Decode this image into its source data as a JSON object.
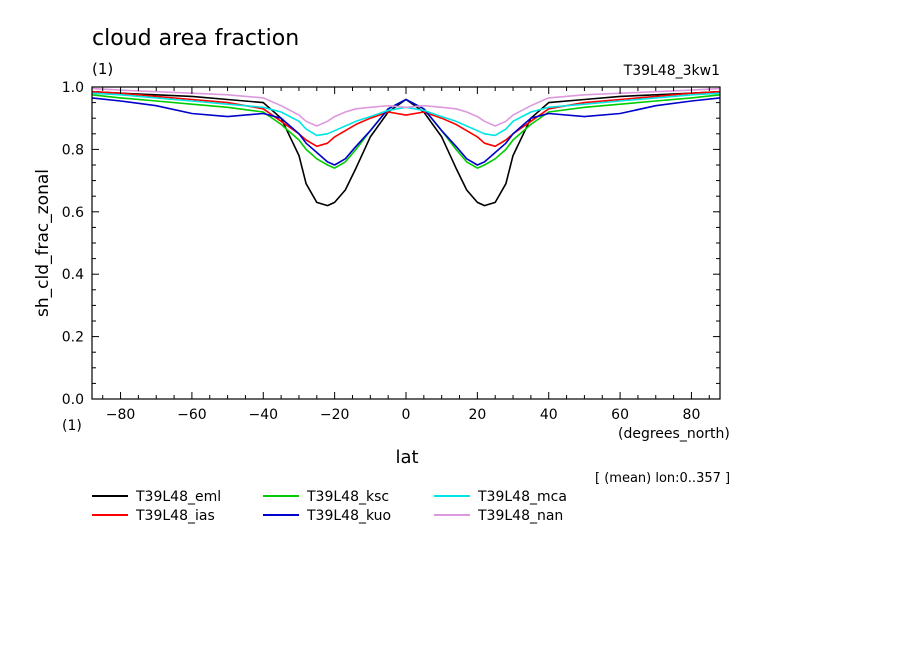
{
  "chart_data": {
    "type": "line",
    "title": "cloud area fraction",
    "units_label": "(1)",
    "experiment": "T39L48_3kw1",
    "xlabel": "lat",
    "xunits": "(degrees_north)",
    "ylabel": "sh_cld_frac_zonal",
    "yunits": "(1)",
    "note": "[ (mean) lon:0..357 ]",
    "xlim": [
      -88,
      88
    ],
    "ylim": [
      0,
      1
    ],
    "xticks": [
      -80,
      -60,
      -40,
      -20,
      0,
      20,
      40,
      60,
      80
    ],
    "yticks": [
      0,
      0.2,
      0.4,
      0.6,
      0.8,
      1
    ],
    "ytick_labels": [
      "0.0",
      "0.2",
      "0.4",
      "0.6",
      "0.8",
      "1.0"
    ],
    "grid": false,
    "legend_position": "bottom",
    "x": [
      -88,
      -80,
      -70,
      -60,
      -50,
      -40,
      -35,
      -30,
      -28,
      -25,
      -22,
      -20,
      -17,
      -14,
      -10,
      -5,
      0,
      5,
      10,
      14,
      17,
      20,
      22,
      25,
      28,
      30,
      35,
      40,
      50,
      60,
      70,
      80,
      88
    ],
    "series": [
      {
        "name": "T39L48_eml",
        "color": "#000000",
        "values": [
          0.985,
          0.98,
          0.975,
          0.97,
          0.96,
          0.95,
          0.9,
          0.78,
          0.69,
          0.63,
          0.62,
          0.63,
          0.67,
          0.74,
          0.84,
          0.92,
          0.96,
          0.92,
          0.84,
          0.74,
          0.67,
          0.63,
          0.62,
          0.63,
          0.69,
          0.78,
          0.9,
          0.95,
          0.96,
          0.97,
          0.975,
          0.98,
          0.985
        ]
      },
      {
        "name": "T39L48_ias",
        "color": "#ff0000",
        "values": [
          0.985,
          0.98,
          0.97,
          0.96,
          0.95,
          0.93,
          0.89,
          0.85,
          0.83,
          0.81,
          0.82,
          0.84,
          0.86,
          0.88,
          0.9,
          0.92,
          0.91,
          0.92,
          0.9,
          0.88,
          0.86,
          0.84,
          0.82,
          0.81,
          0.83,
          0.85,
          0.89,
          0.93,
          0.95,
          0.96,
          0.97,
          0.98,
          0.985
        ]
      },
      {
        "name": "T39L48_ksc",
        "color": "#00cc00",
        "values": [
          0.975,
          0.965,
          0.955,
          0.945,
          0.935,
          0.92,
          0.88,
          0.83,
          0.8,
          0.77,
          0.75,
          0.74,
          0.76,
          0.8,
          0.86,
          0.93,
          0.96,
          0.93,
          0.86,
          0.8,
          0.76,
          0.74,
          0.75,
          0.77,
          0.8,
          0.83,
          0.88,
          0.92,
          0.935,
          0.945,
          0.955,
          0.965,
          0.975
        ]
      },
      {
        "name": "T39L48_kuo",
        "color": "#0000cc",
        "values": [
          0.965,
          0.955,
          0.94,
          0.915,
          0.905,
          0.915,
          0.9,
          0.85,
          0.82,
          0.79,
          0.76,
          0.75,
          0.77,
          0.81,
          0.86,
          0.93,
          0.96,
          0.93,
          0.86,
          0.81,
          0.77,
          0.75,
          0.76,
          0.79,
          0.82,
          0.85,
          0.9,
          0.915,
          0.905,
          0.915,
          0.94,
          0.955,
          0.965
        ]
      },
      {
        "name": "T39L48_mca",
        "color": "#00e5e5",
        "values": [
          0.98,
          0.975,
          0.965,
          0.955,
          0.945,
          0.935,
          0.92,
          0.89,
          0.865,
          0.845,
          0.85,
          0.86,
          0.875,
          0.89,
          0.905,
          0.925,
          0.935,
          0.925,
          0.905,
          0.89,
          0.875,
          0.86,
          0.85,
          0.845,
          0.865,
          0.89,
          0.92,
          0.935,
          0.945,
          0.955,
          0.965,
          0.975,
          0.98
        ]
      },
      {
        "name": "T39L48_nan",
        "color": "#dd99dd",
        "values": [
          0.995,
          0.99,
          0.985,
          0.98,
          0.975,
          0.965,
          0.94,
          0.91,
          0.89,
          0.875,
          0.89,
          0.905,
          0.92,
          0.93,
          0.935,
          0.94,
          0.935,
          0.94,
          0.935,
          0.93,
          0.92,
          0.905,
          0.89,
          0.875,
          0.89,
          0.91,
          0.94,
          0.965,
          0.975,
          0.98,
          0.985,
          0.99,
          0.995
        ]
      }
    ]
  }
}
